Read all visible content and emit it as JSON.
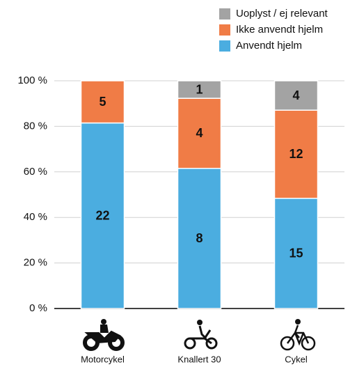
{
  "chart_data": {
    "type": "bar",
    "stacking": "percent",
    "categories": [
      "Motorcykel",
      "Knallert 30",
      "Cykel"
    ],
    "series": [
      {
        "name": "Anvendt hjelm",
        "color": "#4badE0",
        "values": [
          22,
          8,
          15
        ]
      },
      {
        "name": "Ikke anvendt hjelm",
        "color": "#f07c46",
        "values": [
          5,
          4,
          12
        ]
      },
      {
        "name": "Uoplyst / ej relevant",
        "color": "#a3a3a3",
        "values": [
          null,
          1,
          4
        ]
      }
    ],
    "ylim": [
      0,
      100
    ],
    "yticks": [
      {
        "value": 0,
        "label": "0 %"
      },
      {
        "value": 20,
        "label": "20 %"
      },
      {
        "value": 40,
        "label": "40 %"
      },
      {
        "value": 60,
        "label": "60 %"
      },
      {
        "value": 80,
        "label": "80 %"
      },
      {
        "value": 100,
        "label": "100 %"
      }
    ],
    "grid": true,
    "legend": "top-right"
  }
}
